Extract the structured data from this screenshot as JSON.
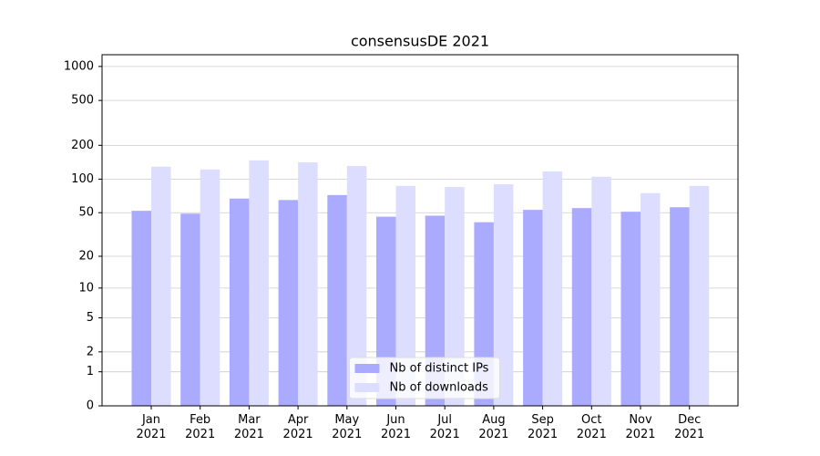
{
  "chart_data": {
    "type": "bar",
    "title": "consensusDE 2021",
    "categories": [
      "Jan\n2021",
      "Feb\n2021",
      "Mar\n2021",
      "Apr\n2021",
      "May\n2021",
      "Jun\n2021",
      "Jul\n2021",
      "Aug\n2021",
      "Sep\n2021",
      "Oct\n2021",
      "Nov\n2021",
      "Dec\n2021"
    ],
    "series": [
      {
        "name": "Nb of distinct IPs",
        "color": "#aaaaff",
        "values": [
          52,
          49,
          67,
          65,
          72,
          46,
          47,
          41,
          53,
          55,
          51,
          56
        ]
      },
      {
        "name": "Nb of downloads",
        "color": "#ddddff",
        "values": [
          129,
          122,
          147,
          141,
          131,
          87,
          85,
          90,
          117,
          105,
          75,
          87
        ]
      }
    ],
    "yscale": "log1p",
    "ylim": [
      0,
      1270
    ],
    "yticks": [
      0,
      1,
      2,
      5,
      10,
      20,
      50,
      100,
      200,
      500,
      1000
    ],
    "grid": true,
    "legend": "lower center"
  }
}
